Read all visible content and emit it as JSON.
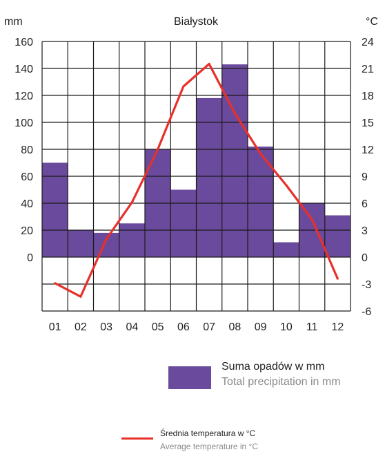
{
  "chart_data": {
    "type": "bar+line",
    "title": "Białystok",
    "left_unit": "mm",
    "right_unit": "°C",
    "categories": [
      "01",
      "02",
      "03",
      "04",
      "05",
      "06",
      "07",
      "08",
      "09",
      "10",
      "11",
      "12"
    ],
    "left_ticks": [
      "160",
      "140",
      "120",
      "100",
      "80",
      "60",
      "40",
      "20",
      "0"
    ],
    "right_ticks": [
      "24",
      "21",
      "18",
      "15",
      "12",
      "9",
      "6",
      "3",
      "0",
      "-3",
      "-6"
    ],
    "ylim_left": [
      -40,
      160
    ],
    "ylim_right": [
      -6,
      24
    ],
    "series": [
      {
        "name": "Suma opadów w mm",
        "type": "bar",
        "axis": "left",
        "values": [
          70,
          20,
          18,
          25,
          80,
          50,
          118,
          143,
          82,
          11,
          40,
          31
        ]
      },
      {
        "name": "Średnia temperatura w °C",
        "type": "line",
        "axis": "right",
        "values": [
          -2.9,
          -4.4,
          2.0,
          6.1,
          12.0,
          19.0,
          21.5,
          16.0,
          11.5,
          8.0,
          4.2,
          -2.4
        ]
      }
    ],
    "grid": true,
    "colors": {
      "bar": "#6a4a9c",
      "line": "#e8302a",
      "grid": "#1a1a1a"
    }
  },
  "legend": {
    "precip_pl": "Suma opadów w mm",
    "precip_en": "Total precipitation in mm",
    "temp_pl": "Średnia temperatura w °C",
    "temp_en": "Average temperature in °C"
  }
}
